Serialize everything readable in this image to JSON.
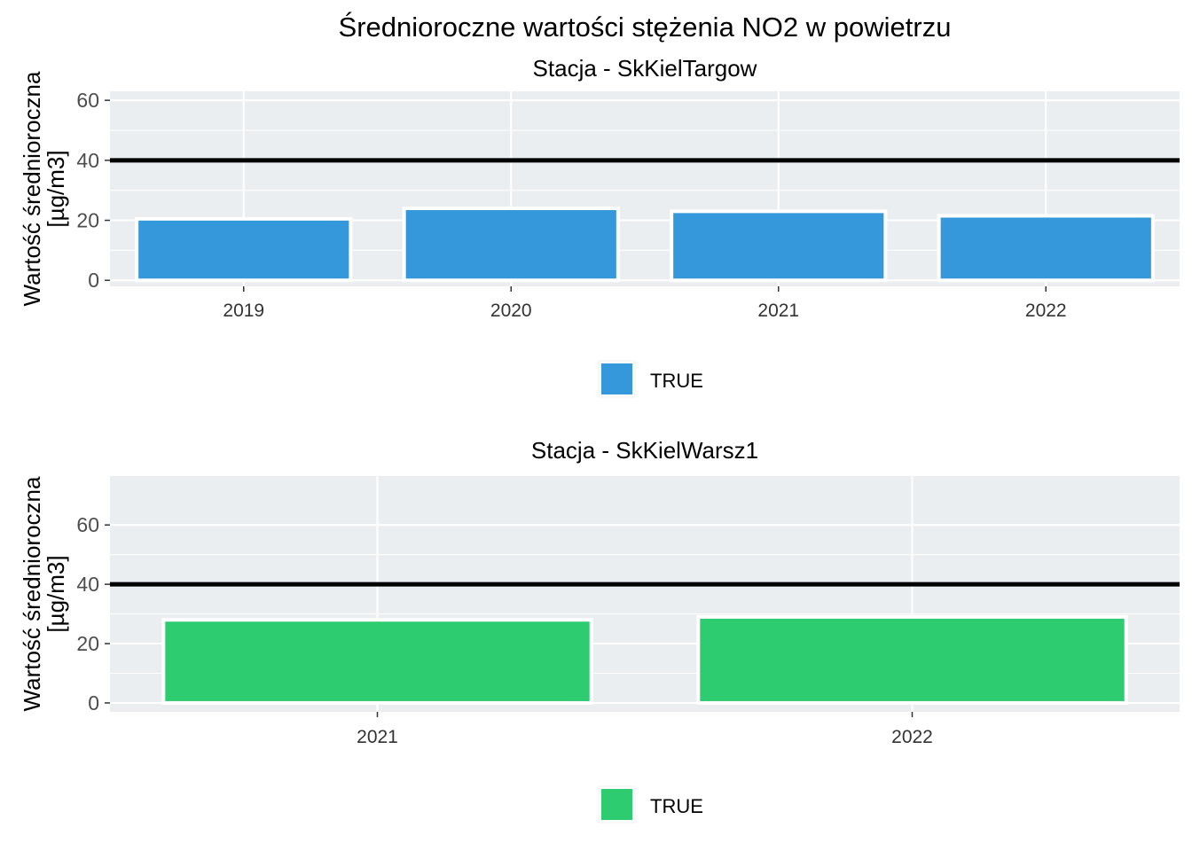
{
  "main_title": "Średnioroczne wartości stężenia NO2 w powietrzu",
  "chart_data": [
    {
      "type": "bar",
      "title": "Stacja - SkKielTargow",
      "xlabel": "",
      "ylabel_lines": [
        "Wartość średnioroczna",
        "[µg/m3]"
      ],
      "categories": [
        "2019",
        "2020",
        "2021",
        "2022"
      ],
      "values": [
        20.5,
        24,
        23,
        21.5
      ],
      "ylim": [
        -2,
        63
      ],
      "yticks": [
        0,
        20,
        40,
        60
      ],
      "reference_line": 40,
      "bar_color": "#3498DB",
      "legend": {
        "label": "TRUE",
        "placement": "bottom"
      },
      "grid": true
    },
    {
      "type": "bar",
      "title": "Stacja - SkKielWarsz1",
      "xlabel": "",
      "ylabel_lines": [
        "Wartość średnioroczna",
        "[µg/m3]"
      ],
      "categories": [
        "2021",
        "2022"
      ],
      "values": [
        28,
        29
      ],
      "ylim": [
        -3,
        76.5
      ],
      "yticks": [
        0,
        20,
        40,
        60
      ],
      "reference_line": 40,
      "bar_color": "#2ECC71",
      "legend": {
        "label": "TRUE",
        "placement": "bottom"
      },
      "grid": true
    }
  ],
  "colors": {
    "panel_background": "#EBEEF0",
    "grid": "#FFFFFF",
    "reference_line": "#000000",
    "text": "#000000",
    "tick_text": "#4D4D4D"
  }
}
